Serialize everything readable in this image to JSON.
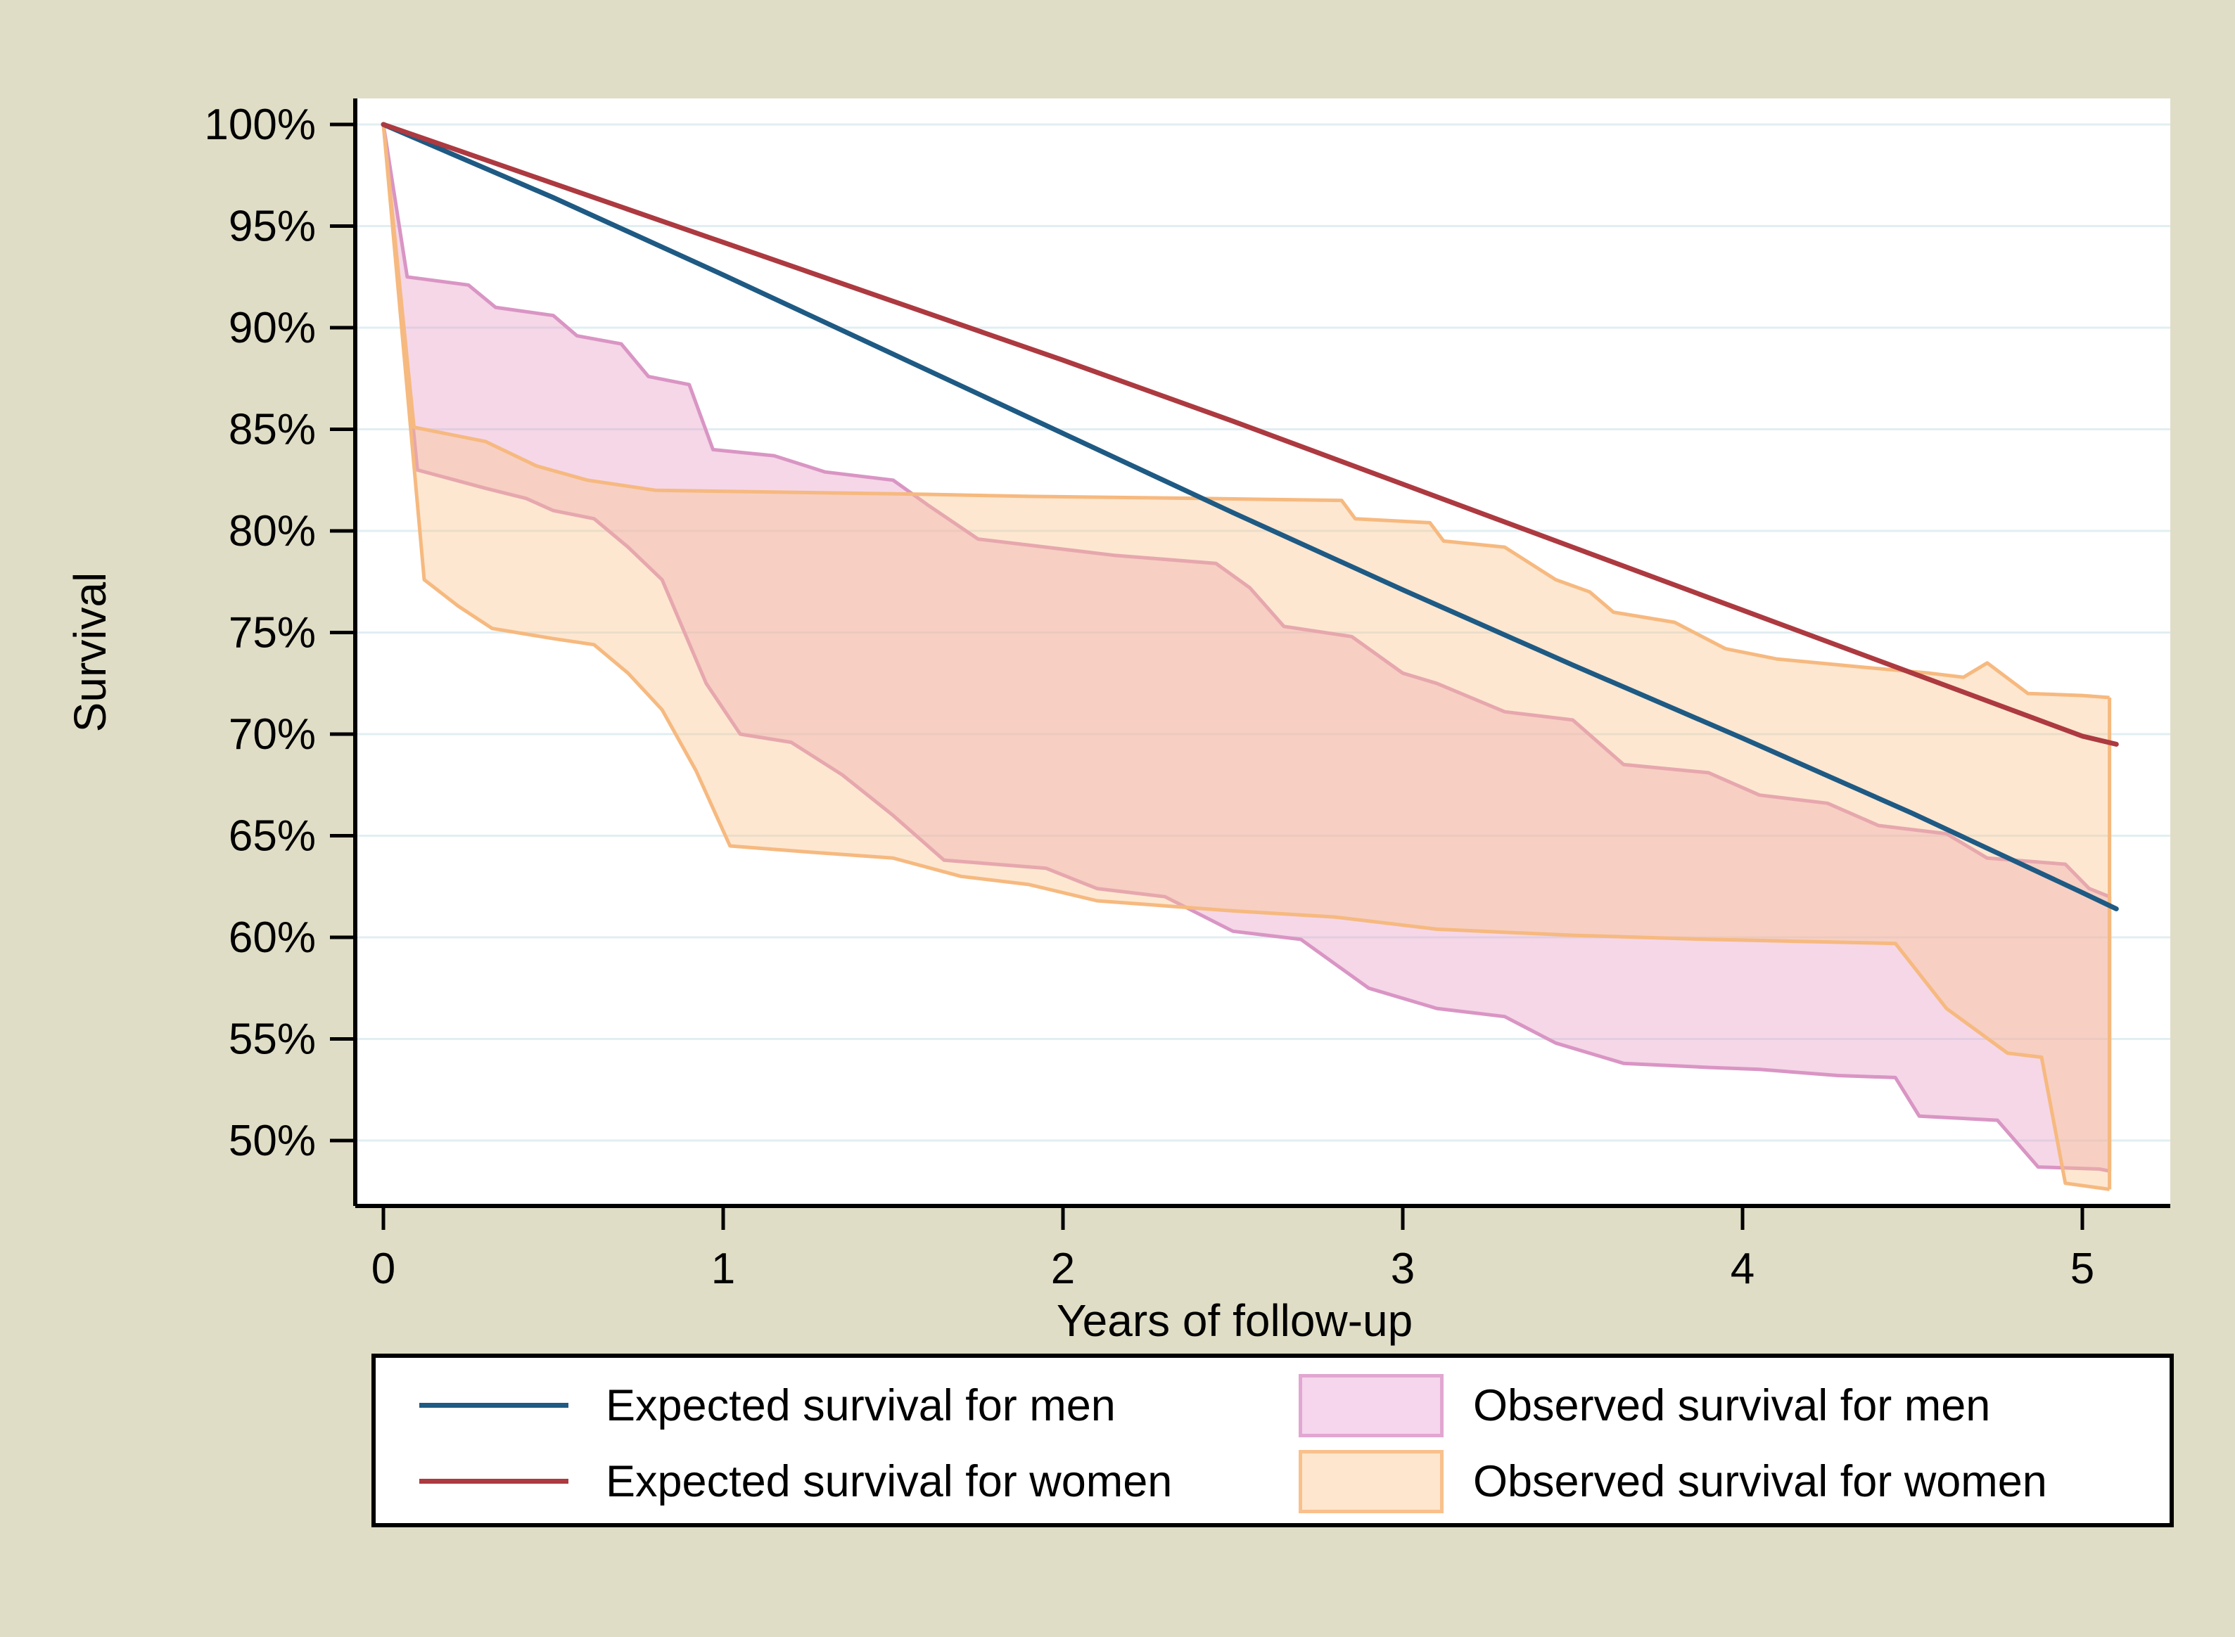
{
  "figure": {
    "background_color": "#e0ddc6",
    "plot_background_color": "#ffffff",
    "gridline_color": "#e1eef2",
    "axis_color": "#000000"
  },
  "chart_data": {
    "type": "line",
    "title": "",
    "xlabel": "Years of follow-up",
    "ylabel": "Survival",
    "grid": "horizontal",
    "legend_position": "bottom",
    "xlim": [
      0,
      5.26
    ],
    "ylim": [
      46.5,
      101.3
    ],
    "x_ticks": {
      "values": [
        0,
        1,
        2,
        3,
        4,
        5
      ],
      "labels": [
        "0",
        "1",
        "2",
        "3",
        "4",
        "5"
      ]
    },
    "y_ticks": {
      "values": [
        100,
        95,
        90,
        85,
        80,
        75,
        70,
        65,
        60,
        55,
        50
      ],
      "labels": [
        "100%",
        "95%",
        "90%",
        "85%",
        "80%",
        "75%",
        "70%",
        "65%",
        "60%",
        "55%",
        "50%"
      ]
    },
    "series": [
      {
        "name": "Expected survival for men",
        "color": "#1e5a83",
        "width": 7,
        "points": [
          [
            0,
            100
          ],
          [
            0.5,
            96.4
          ],
          [
            1,
            92.6
          ],
          [
            1.5,
            88.7
          ],
          [
            2,
            84.8
          ],
          [
            2.5,
            80.9
          ],
          [
            3,
            77.1
          ],
          [
            3.5,
            73.4
          ],
          [
            4,
            69.8
          ],
          [
            4.5,
            66.1
          ],
          [
            5,
            62.2
          ],
          [
            5.1,
            61.4
          ]
        ]
      },
      {
        "name": "Expected survival for women",
        "color": "#ac3a40",
        "width": 7,
        "points": [
          [
            0,
            100
          ],
          [
            0.5,
            97.1
          ],
          [
            1,
            94.2
          ],
          [
            1.5,
            91.3
          ],
          [
            2,
            88.4
          ],
          [
            2.5,
            85.4
          ],
          [
            3,
            82.3
          ],
          [
            3.5,
            79.2
          ],
          [
            4,
            76.1
          ],
          [
            4.5,
            73.0
          ],
          [
            5,
            69.9
          ],
          [
            5.1,
            69.5
          ]
        ]
      }
    ],
    "bands": [
      {
        "name": "Observed survival for men",
        "fill_color": "#e79fc9",
        "fill_opacity": 0.42,
        "edge_color": "#d995c4",
        "edge_width": 5,
        "upper": [
          [
            0,
            100
          ],
          [
            0.07,
            92.5
          ],
          [
            0.25,
            92.1
          ],
          [
            0.33,
            91.0
          ],
          [
            0.5,
            90.6
          ],
          [
            0.57,
            89.6
          ],
          [
            0.7,
            89.2
          ],
          [
            0.78,
            87.6
          ],
          [
            0.9,
            87.2
          ],
          [
            0.97,
            84.0
          ],
          [
            1.15,
            83.7
          ],
          [
            1.3,
            82.9
          ],
          [
            1.5,
            82.5
          ],
          [
            1.6,
            81.3
          ],
          [
            1.75,
            79.6
          ],
          [
            1.95,
            79.2
          ],
          [
            2.15,
            78.8
          ],
          [
            2.45,
            78.4
          ],
          [
            2.55,
            77.2
          ],
          [
            2.65,
            75.3
          ],
          [
            2.85,
            74.8
          ],
          [
            3.0,
            73.0
          ],
          [
            3.1,
            72.5
          ],
          [
            3.3,
            71.1
          ],
          [
            3.5,
            70.7
          ],
          [
            3.65,
            68.5
          ],
          [
            3.9,
            68.1
          ],
          [
            4.05,
            67.0
          ],
          [
            4.25,
            66.6
          ],
          [
            4.4,
            65.5
          ],
          [
            4.6,
            65.1
          ],
          [
            4.72,
            63.9
          ],
          [
            4.95,
            63.6
          ],
          [
            5.02,
            62.4
          ],
          [
            5.08,
            62.0
          ]
        ],
        "lower": [
          [
            0,
            100
          ],
          [
            0.1,
            83.0
          ],
          [
            0.3,
            82.1
          ],
          [
            0.42,
            81.6
          ],
          [
            0.5,
            81.0
          ],
          [
            0.62,
            80.6
          ],
          [
            0.72,
            79.2
          ],
          [
            0.82,
            77.6
          ],
          [
            0.95,
            72.5
          ],
          [
            1.05,
            70.0
          ],
          [
            1.2,
            69.6
          ],
          [
            1.35,
            68.0
          ],
          [
            1.5,
            66.0
          ],
          [
            1.65,
            63.8
          ],
          [
            1.95,
            63.4
          ],
          [
            2.1,
            62.4
          ],
          [
            2.3,
            62.0
          ],
          [
            2.5,
            60.3
          ],
          [
            2.7,
            59.9
          ],
          [
            2.9,
            57.5
          ],
          [
            3.1,
            56.5
          ],
          [
            3.3,
            56.1
          ],
          [
            3.45,
            54.8
          ],
          [
            3.65,
            53.8
          ],
          [
            3.9,
            53.6
          ],
          [
            4.05,
            53.5
          ],
          [
            4.28,
            53.2
          ],
          [
            4.45,
            53.1
          ],
          [
            4.52,
            51.2
          ],
          [
            4.75,
            51.0
          ],
          [
            4.87,
            48.7
          ],
          [
            5.05,
            48.6
          ],
          [
            5.08,
            48.5
          ]
        ]
      },
      {
        "name": "Observed survival for women",
        "fill_color": "#f9c38c",
        "fill_opacity": 0.4,
        "edge_color": "#f6b97f",
        "edge_width": 5,
        "upper": [
          [
            0,
            100
          ],
          [
            0.09,
            85.1
          ],
          [
            0.3,
            84.4
          ],
          [
            0.45,
            83.2
          ],
          [
            0.6,
            82.5
          ],
          [
            0.8,
            82.0
          ],
          [
            1.2,
            81.9
          ],
          [
            1.6,
            81.8
          ],
          [
            1.9,
            81.7
          ],
          [
            2.4,
            81.6
          ],
          [
            2.82,
            81.5
          ],
          [
            2.86,
            80.6
          ],
          [
            3.08,
            80.4
          ],
          [
            3.12,
            79.5
          ],
          [
            3.3,
            79.2
          ],
          [
            3.45,
            77.6
          ],
          [
            3.55,
            77.0
          ],
          [
            3.62,
            76.0
          ],
          [
            3.8,
            75.5
          ],
          [
            3.95,
            74.2
          ],
          [
            4.1,
            73.7
          ],
          [
            4.35,
            73.3
          ],
          [
            4.55,
            73.0
          ],
          [
            4.65,
            72.8
          ],
          [
            4.72,
            73.5
          ],
          [
            4.84,
            72.0
          ],
          [
            5.0,
            71.9
          ],
          [
            5.08,
            71.8
          ]
        ],
        "lower": [
          [
            0,
            100
          ],
          [
            0.12,
            77.6
          ],
          [
            0.22,
            76.3
          ],
          [
            0.32,
            75.2
          ],
          [
            0.5,
            74.7
          ],
          [
            0.62,
            74.4
          ],
          [
            0.72,
            73.0
          ],
          [
            0.82,
            71.2
          ],
          [
            0.92,
            68.2
          ],
          [
            1.02,
            64.5
          ],
          [
            1.25,
            64.2
          ],
          [
            1.5,
            63.9
          ],
          [
            1.7,
            63.0
          ],
          [
            1.9,
            62.6
          ],
          [
            2.1,
            61.8
          ],
          [
            2.5,
            61.3
          ],
          [
            2.8,
            61.0
          ],
          [
            3.1,
            60.4
          ],
          [
            3.5,
            60.1
          ],
          [
            3.9,
            59.9
          ],
          [
            4.45,
            59.7
          ],
          [
            4.6,
            56.5
          ],
          [
            4.78,
            54.3
          ],
          [
            4.88,
            54.1
          ],
          [
            4.95,
            47.9
          ],
          [
            5.08,
            47.6
          ]
        ]
      }
    ]
  },
  "legend": {
    "items": [
      {
        "label": "Expected survival for men",
        "type": "line",
        "color": "#1e5a83"
      },
      {
        "label": "Expected survival for women",
        "type": "line",
        "color": "#ac3a40"
      },
      {
        "label": "Observed survival for men",
        "type": "swatch",
        "fill": "#f5d6ec",
        "edge": "#e2a6d2"
      },
      {
        "label": "Observed survival for women",
        "type": "swatch",
        "fill": "#fde6cd",
        "edge": "#f9c08c"
      }
    ]
  }
}
